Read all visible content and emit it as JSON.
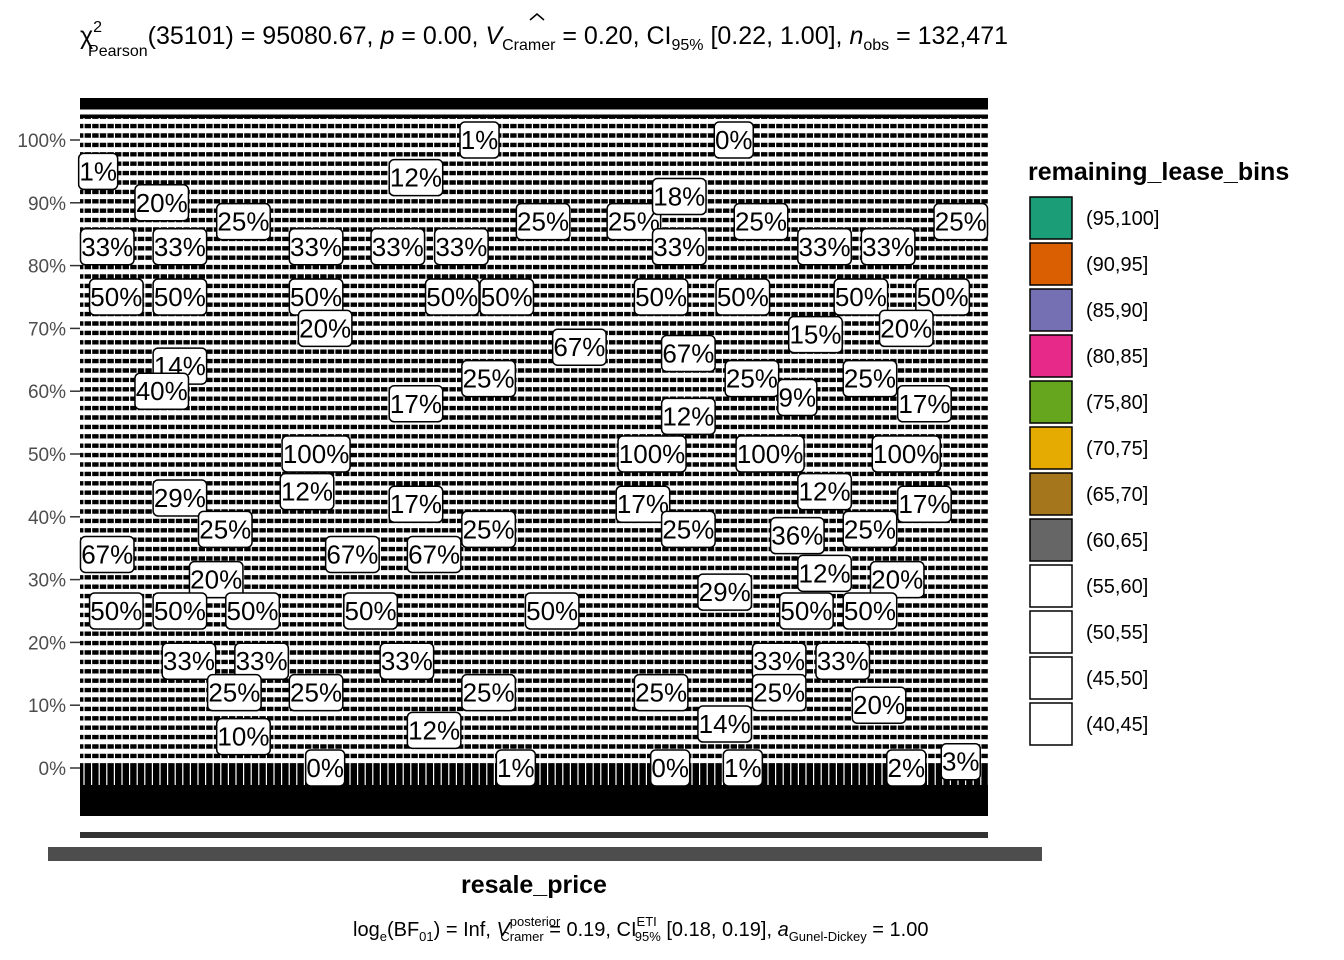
{
  "chart_data": {
    "type": "bar",
    "subtype": "stacked-proportion-with-labels",
    "title_parts": {
      "stat": "χ",
      "stat_sup": "2",
      "stat_sub": "Pearson",
      "df": "(35101) = 95080.67, ",
      "p_label": "p",
      "p_value": " = 0.00, ",
      "v_label": "V",
      "v_sub": "Cramer",
      "v_value": " = 0.20, CI",
      "ci_sub": "95%",
      "ci_value": " [0.22, 1.00], ",
      "n_label": "n",
      "n_sub": "obs",
      "n_value": " = 132,471"
    },
    "caption_parts": {
      "log": "log",
      "log_sub": "e",
      "bf": "(BF",
      "bf_sub": "01",
      "bf_value": ") = Inf, ",
      "v_label": "V",
      "v_sup": "posterior",
      "v_sub": "Cramer",
      "v_value": " = 0.19, CI",
      "ci_sup": "ETI",
      "ci_sub": "95%",
      "ci_value": " [0.18, 0.19], ",
      "a_label": "a",
      "a_sub": "Gunel-Dickey",
      "a_value": " = 1.00"
    },
    "xlabel": "resale_price",
    "ylabel": "",
    "y_ticks": [
      "0%",
      "10%",
      "20%",
      "30%",
      "40%",
      "50%",
      "60%",
      "70%",
      "80%",
      "90%",
      "100%"
    ],
    "ylim": [
      0,
      1
    ],
    "legend": {
      "title": "remaining_lease_bins",
      "position": "right",
      "entries": [
        {
          "label": "(95,100]",
          "color": "#1B9E77"
        },
        {
          "label": "(90,95]",
          "color": "#D95F02"
        },
        {
          "label": "(85,90]",
          "color": "#7570B3"
        },
        {
          "label": "(80,85]",
          "color": "#E7298A"
        },
        {
          "label": "(75,80]",
          "color": "#66A61E"
        },
        {
          "label": "(70,75]",
          "color": "#E6AB02"
        },
        {
          "label": "(65,70]",
          "color": "#A6761D"
        },
        {
          "label": "(60,65]",
          "color": "#666666"
        },
        {
          "label": "(55,60]",
          "color": "#FFFFFF"
        },
        {
          "label": "(50,55]",
          "color": "#FFFFFF"
        },
        {
          "label": "(45,50]",
          "color": "#FFFFFF"
        },
        {
          "label": "(40,45]",
          "color": "#FFFFFF"
        }
      ]
    },
    "visible_labels": [
      {
        "text": "1%",
        "x": 0.02,
        "y": 0.95
      },
      {
        "text": "20%",
        "x": 0.09,
        "y": 0.9
      },
      {
        "text": "12%",
        "x": 0.37,
        "y": 0.94
      },
      {
        "text": "25%",
        "x": 0.18,
        "y": 0.87
      },
      {
        "text": "25%",
        "x": 0.51,
        "y": 0.87
      },
      {
        "text": "25%",
        "x": 0.61,
        "y": 0.87
      },
      {
        "text": "25%",
        "x": 0.75,
        "y": 0.87
      },
      {
        "text": "25%",
        "x": 0.97,
        "y": 0.87
      },
      {
        "text": "18%",
        "x": 0.66,
        "y": 0.91
      },
      {
        "text": "0%",
        "x": 0.72,
        "y": 1.0
      },
      {
        "text": "1%",
        "x": 0.44,
        "y": 1.0
      },
      {
        "text": "33%",
        "x": 0.03,
        "y": 0.83
      },
      {
        "text": "33%",
        "x": 0.11,
        "y": 0.83
      },
      {
        "text": "33%",
        "x": 0.26,
        "y": 0.83
      },
      {
        "text": "33%",
        "x": 0.35,
        "y": 0.83
      },
      {
        "text": "33%",
        "x": 0.42,
        "y": 0.83
      },
      {
        "text": "33%",
        "x": 0.66,
        "y": 0.83
      },
      {
        "text": "33%",
        "x": 0.82,
        "y": 0.83
      },
      {
        "text": "33%",
        "x": 0.89,
        "y": 0.83
      },
      {
        "text": "50%",
        "x": 0.04,
        "y": 0.75
      },
      {
        "text": "50%",
        "x": 0.11,
        "y": 0.75
      },
      {
        "text": "50%",
        "x": 0.26,
        "y": 0.75
      },
      {
        "text": "50%",
        "x": 0.41,
        "y": 0.75
      },
      {
        "text": "50%",
        "x": 0.47,
        "y": 0.75
      },
      {
        "text": "50%",
        "x": 0.64,
        "y": 0.75
      },
      {
        "text": "50%",
        "x": 0.73,
        "y": 0.75
      },
      {
        "text": "50%",
        "x": 0.86,
        "y": 0.75
      },
      {
        "text": "50%",
        "x": 0.95,
        "y": 0.75
      },
      {
        "text": "20%",
        "x": 0.27,
        "y": 0.7
      },
      {
        "text": "20%",
        "x": 0.91,
        "y": 0.7
      },
      {
        "text": "15%",
        "x": 0.81,
        "y": 0.69
      },
      {
        "text": "67%",
        "x": 0.55,
        "y": 0.67
      },
      {
        "text": "67%",
        "x": 0.67,
        "y": 0.66
      },
      {
        "text": "14%",
        "x": 0.11,
        "y": 0.64
      },
      {
        "text": "40%",
        "x": 0.09,
        "y": 0.6
      },
      {
        "text": "25%",
        "x": 0.45,
        "y": 0.62
      },
      {
        "text": "25%",
        "x": 0.74,
        "y": 0.62
      },
      {
        "text": "25%",
        "x": 0.87,
        "y": 0.62
      },
      {
        "text": "17%",
        "x": 0.37,
        "y": 0.58
      },
      {
        "text": "17%",
        "x": 0.93,
        "y": 0.58
      },
      {
        "text": "9%",
        "x": 0.79,
        "y": 0.59
      },
      {
        "text": "12%",
        "x": 0.67,
        "y": 0.56
      },
      {
        "text": "100%",
        "x": 0.26,
        "y": 0.5
      },
      {
        "text": "100%",
        "x": 0.63,
        "y": 0.5
      },
      {
        "text": "100%",
        "x": 0.76,
        "y": 0.5
      },
      {
        "text": "100%",
        "x": 0.91,
        "y": 0.5
      },
      {
        "text": "29%",
        "x": 0.11,
        "y": 0.43
      },
      {
        "text": "12%",
        "x": 0.25,
        "y": 0.44
      },
      {
        "text": "12%",
        "x": 0.82,
        "y": 0.44
      },
      {
        "text": "17%",
        "x": 0.37,
        "y": 0.42
      },
      {
        "text": "17%",
        "x": 0.62,
        "y": 0.42
      },
      {
        "text": "17%",
        "x": 0.93,
        "y": 0.42
      },
      {
        "text": "25%",
        "x": 0.16,
        "y": 0.38
      },
      {
        "text": "25%",
        "x": 0.45,
        "y": 0.38
      },
      {
        "text": "25%",
        "x": 0.67,
        "y": 0.38
      },
      {
        "text": "25%",
        "x": 0.87,
        "y": 0.38
      },
      {
        "text": "36%",
        "x": 0.79,
        "y": 0.37
      },
      {
        "text": "67%",
        "x": 0.03,
        "y": 0.34
      },
      {
        "text": "67%",
        "x": 0.3,
        "y": 0.34
      },
      {
        "text": "67%",
        "x": 0.39,
        "y": 0.34
      },
      {
        "text": "20%",
        "x": 0.15,
        "y": 0.3
      },
      {
        "text": "20%",
        "x": 0.9,
        "y": 0.3
      },
      {
        "text": "12%",
        "x": 0.82,
        "y": 0.31
      },
      {
        "text": "29%",
        "x": 0.71,
        "y": 0.28
      },
      {
        "text": "50%",
        "x": 0.04,
        "y": 0.25
      },
      {
        "text": "50%",
        "x": 0.11,
        "y": 0.25
      },
      {
        "text": "50%",
        "x": 0.19,
        "y": 0.25
      },
      {
        "text": "50%",
        "x": 0.32,
        "y": 0.25
      },
      {
        "text": "50%",
        "x": 0.52,
        "y": 0.25
      },
      {
        "text": "50%",
        "x": 0.8,
        "y": 0.25
      },
      {
        "text": "50%",
        "x": 0.87,
        "y": 0.25
      },
      {
        "text": "33%",
        "x": 0.12,
        "y": 0.17
      },
      {
        "text": "33%",
        "x": 0.2,
        "y": 0.17
      },
      {
        "text": "33%",
        "x": 0.36,
        "y": 0.17
      },
      {
        "text": "33%",
        "x": 0.77,
        "y": 0.17
      },
      {
        "text": "33%",
        "x": 0.84,
        "y": 0.17
      },
      {
        "text": "25%",
        "x": 0.17,
        "y": 0.12
      },
      {
        "text": "25%",
        "x": 0.26,
        "y": 0.12
      },
      {
        "text": "25%",
        "x": 0.45,
        "y": 0.12
      },
      {
        "text": "25%",
        "x": 0.64,
        "y": 0.12
      },
      {
        "text": "25%",
        "x": 0.77,
        "y": 0.12
      },
      {
        "text": "20%",
        "x": 0.88,
        "y": 0.1
      },
      {
        "text": "12%",
        "x": 0.39,
        "y": 0.06
      },
      {
        "text": "14%",
        "x": 0.71,
        "y": 0.07
      },
      {
        "text": "10%",
        "x": 0.18,
        "y": 0.05
      },
      {
        "text": "0%",
        "x": 0.27,
        "y": 0.0
      },
      {
        "text": "1%",
        "x": 0.48,
        "y": 0.0
      },
      {
        "text": "0%",
        "x": 0.65,
        "y": 0.0
      },
      {
        "text": "1%",
        "x": 0.73,
        "y": 0.0
      },
      {
        "text": "2%",
        "x": 0.91,
        "y": 0.0
      },
      {
        "text": "3%",
        "x": 0.97,
        "y": 0.01
      }
    ]
  }
}
